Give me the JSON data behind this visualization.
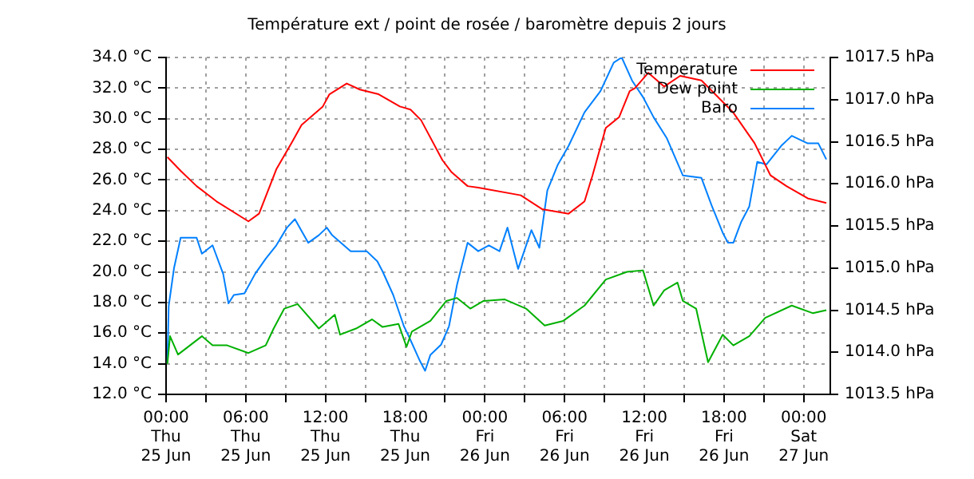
{
  "chart_data": {
    "type": "line",
    "title": "Température ext / point de rosée / baromètre depuis 2 jours",
    "xlim": [
      "--06-25T00:00",
      "--06-27T02:00"
    ],
    "xticks": [
      {
        "value": "--06-25T00:00",
        "label": "00:00\nThu\n25 Jun"
      },
      {
        "value": "--06-25T03:00",
        "label": null
      },
      {
        "value": "--06-25T06:00",
        "label": "06:00\nThu\n25 Jun"
      },
      {
        "value": "--06-25T09:00",
        "label": null
      },
      {
        "value": "--06-25T12:00",
        "label": "12:00\nThu\n25 Jun"
      },
      {
        "value": "--06-25T15:00",
        "label": null
      },
      {
        "value": "--06-25T18:00",
        "label": "18:00\nThu\n25 Jun"
      },
      {
        "value": "--06-25T21:00",
        "label": null
      },
      {
        "value": "--06-26T00:00",
        "label": "00:00\nFri\n26 Jun"
      },
      {
        "value": "--06-26T03:00",
        "label": null
      },
      {
        "value": "--06-26T06:00",
        "label": "06:00\nFri\n26 Jun"
      },
      {
        "value": "--06-26T09:00",
        "label": null
      },
      {
        "value": "--06-26T12:00",
        "label": "12:00\nFri\n26 Jun"
      },
      {
        "value": "--06-26T15:00",
        "label": null
      },
      {
        "value": "--06-26T18:00",
        "label": "18:00\nFri\n26 Jun"
      },
      {
        "value": "--06-26T21:00",
        "label": null
      },
      {
        "value": "--06-27T00:00",
        "label": "00:00\nSat\n27 Jun"
      }
    ],
    "ylim": [
      12,
      34
    ],
    "yticks": [
      {
        "value": 12,
        "label": "12.0 °C"
      },
      {
        "value": 14,
        "label": "14.0 °C"
      },
      {
        "value": 16,
        "label": "16.0 °C"
      },
      {
        "value": 18,
        "label": "18.0 °C"
      },
      {
        "value": 20,
        "label": "20.0 °C"
      },
      {
        "value": 22,
        "label": "22.0 °C"
      },
      {
        "value": 24,
        "label": "24.0 °C"
      },
      {
        "value": 26,
        "label": "26.0 °C"
      },
      {
        "value": 28,
        "label": "28.0 °C"
      },
      {
        "value": 30,
        "label": "30.0 °C"
      },
      {
        "value": 32,
        "label": "32.0 °C"
      },
      {
        "value": 34,
        "label": "34.0 °C"
      }
    ],
    "y2lim": [
      1013.5,
      1017.5
    ],
    "y2ticks": [
      {
        "value": 1013.5,
        "label": "1013.5 hPa"
      },
      {
        "value": 1014,
        "label": "1014.0 hPa"
      },
      {
        "value": 1014.5,
        "label": "1014.5 hPa"
      },
      {
        "value": 1015,
        "label": "1015.0 hPa"
      },
      {
        "value": 1015.5,
        "label": "1015.5 hPa"
      },
      {
        "value": 1016,
        "label": "1016.0 hPa"
      },
      {
        "value": 1016.5,
        "label": "1016.5 hPa"
      },
      {
        "value": 1017,
        "label": "1017.0 hPa"
      },
      {
        "value": 1017.5,
        "label": "1017.5 hPa"
      }
    ],
    "grid": true,
    "legend": "top right",
    "marker": "none",
    "line_style": "solid",
    "series": [
      {
        "name": "Temperature",
        "color": "#ff0000",
        "x": [
          "--06-25T00:06",
          "--06-25T01:06",
          "--06-25T02:18",
          "--06-25T03:48",
          "--06-25T06:12",
          "--06-25T07:00",
          "--06-25T08:18",
          "--06-25T09:30",
          "--06-25T10:12",
          "--06-25T11:48",
          "--06-25T12:18",
          "--06-25T13:36",
          "--06-25T14:36",
          "--06-25T16:00",
          "--06-25T17:36",
          "--06-25T18:24",
          "--06-25T19:12",
          "--06-25T20:48",
          "--06-25T21:30",
          "--06-25T22:42",
          "--06-25T23:30",
          "--06-26T02:42",
          "--06-26T04:18",
          "--06-26T06:18",
          "--06-26T07:30",
          "--06-26T08:06",
          "--06-26T09:06",
          "--06-26T10:06",
          "--06-26T10:54",
          "--06-26T11:18",
          "--06-26T12:18",
          "--06-26T13:30",
          "--06-26T14:42",
          "--06-26T16:18",
          "--06-26T18:42",
          "--06-26T20:18",
          "--06-26T21:30",
          "--06-26T22:42",
          "--06-27T00:18",
          "--06-27T01:42"
        ],
        "values": [
          27.5,
          26.6,
          25.6,
          24.6,
          23.3,
          23.8,
          26.7,
          28.5,
          29.6,
          30.8,
          31.6,
          32.3,
          31.9,
          31.6,
          30.8,
          30.6,
          29.9,
          27.3,
          26.5,
          25.6,
          25.5,
          25.0,
          24.1,
          23.8,
          24.6,
          26.3,
          29.4,
          30.1,
          31.8,
          32.0,
          33.0,
          32.1,
          32.8,
          32.5,
          30.4,
          28.4,
          26.3,
          25.6,
          24.8,
          24.5
        ]
      },
      {
        "name": "Dew point",
        "color": "#00b000",
        "x": [
          "--06-25T00:06",
          "--06-25T00:18",
          "--06-25T00:54",
          "--06-25T02:42",
          "--06-25T03:30",
          "--06-25T04:36",
          "--06-25T06:12",
          "--06-25T07:30",
          "--06-25T08:06",
          "--06-25T08:54",
          "--06-25T09:54",
          "--06-25T10:30",
          "--06-25T11:30",
          "--06-25T12:42",
          "--06-25T13:06",
          "--06-25T14:18",
          "--06-25T15:30",
          "--06-25T16:18",
          "--06-25T17:30",
          "--06-25T18:06",
          "--06-25T18:30",
          "--06-25T19:54",
          "--06-25T21:06",
          "--06-25T21:54",
          "--06-25T22:54",
          "--06-25T23:54",
          "--06-26T01:30",
          "--06-26T03:06",
          "--06-26T04:30",
          "--06-26T05:54",
          "--06-26T07:30",
          "--06-26T09:06",
          "--06-26T10:42",
          "--06-26T11:54",
          "--06-26T12:42",
          "--06-26T13:30",
          "--06-26T14:30",
          "--06-26T14:54",
          "--06-26T15:54",
          "--06-26T16:48",
          "--06-26T17:54",
          "--06-26T18:42",
          "--06-26T19:54",
          "--06-26T21:06",
          "--06-26T23:06",
          "--06-27T00:42",
          "--06-27T01:42"
        ],
        "values": [
          14.0,
          15.8,
          14.6,
          15.8,
          15.2,
          15.2,
          14.7,
          15.2,
          16.3,
          17.6,
          17.9,
          17.3,
          16.3,
          17.2,
          15.9,
          16.3,
          16.9,
          16.4,
          16.6,
          15.1,
          16.1,
          16.8,
          18.1,
          18.3,
          17.6,
          18.1,
          18.2,
          17.6,
          16.5,
          16.8,
          17.8,
          19.5,
          20.0,
          20.1,
          17.8,
          18.8,
          19.3,
          18.1,
          17.6,
          14.1,
          15.9,
          15.2,
          15.8,
          17.0,
          17.8,
          17.3,
          17.5
        ]
      },
      {
        "name": "Baro",
        "color": "#0080ff",
        "axis": "y2",
        "x": [
          "--06-25T00:06",
          "--06-25T00:12",
          "--06-25T00:36",
          "--06-25T01:06",
          "--06-25T02:18",
          "--06-25T02:42",
          "--06-25T03:30",
          "--06-25T04:18",
          "--06-25T04:42",
          "--06-25T05:06",
          "--06-25T05:54",
          "--06-25T06:42",
          "--06-25T07:30",
          "--06-25T08:18",
          "--06-25T09:06",
          "--06-25T09:42",
          "--06-25T10:42",
          "--06-25T11:30",
          "--06-25T12:06",
          "--06-25T12:30",
          "--06-25T13:54",
          "--06-25T15:06",
          "--06-25T15:54",
          "--06-25T16:18",
          "--06-25T17:06",
          "--06-25T17:54",
          "--06-25T18:18",
          "--06-25T19:06",
          "--06-25T19:30",
          "--06-25T19:54",
          "--06-25T20:42",
          "--06-25T21:18",
          "--06-25T21:54",
          "--06-25T22:42",
          "--06-25T23:30",
          "--06-26T00:18",
          "--06-26T01:06",
          "--06-26T01:42",
          "--06-26T02:30",
          "--06-26T03:30",
          "--06-26T04:06",
          "--06-26T04:42",
          "--06-26T05:30",
          "--06-26T06:18",
          "--06-26T07:30",
          "--06-26T08:42",
          "--06-26T09:42",
          "--06-26T10:18",
          "--06-26T11:06",
          "--06-26T11:54",
          "--06-26T12:42",
          "--06-26T13:42",
          "--06-26T14:54",
          "--06-26T16:18",
          "--06-26T17:06",
          "--06-26T17:54",
          "--06-26T18:18",
          "--06-26T18:42",
          "--06-26T19:18",
          "--06-26T19:54",
          "--06-26T20:30",
          "--06-26T21:12",
          "--06-26T22:18",
          "--06-26T23:06",
          "--06-27T00:18",
          "--06-27T01:06",
          "--06-27T01:42"
        ],
        "values": [
          1013.87,
          1014.55,
          1015.0,
          1015.36,
          1015.36,
          1015.17,
          1015.27,
          1014.93,
          1014.58,
          1014.68,
          1014.7,
          1014.93,
          1015.11,
          1015.27,
          1015.48,
          1015.58,
          1015.3,
          1015.39,
          1015.48,
          1015.39,
          1015.2,
          1015.2,
          1015.08,
          1014.96,
          1014.68,
          1014.31,
          1014.18,
          1013.9,
          1013.78,
          1013.97,
          1014.09,
          1014.31,
          1014.8,
          1015.3,
          1015.2,
          1015.27,
          1015.2,
          1015.48,
          1014.99,
          1015.45,
          1015.24,
          1015.92,
          1016.23,
          1016.45,
          1016.85,
          1017.1,
          1017.44,
          1017.5,
          1017.22,
          1017.03,
          1016.79,
          1016.54,
          1016.1,
          1016.07,
          1015.73,
          1015.42,
          1015.3,
          1015.3,
          1015.55,
          1015.73,
          1016.26,
          1016.23,
          1016.45,
          1016.57,
          1016.48,
          1016.48,
          1016.29
        ]
      }
    ]
  }
}
